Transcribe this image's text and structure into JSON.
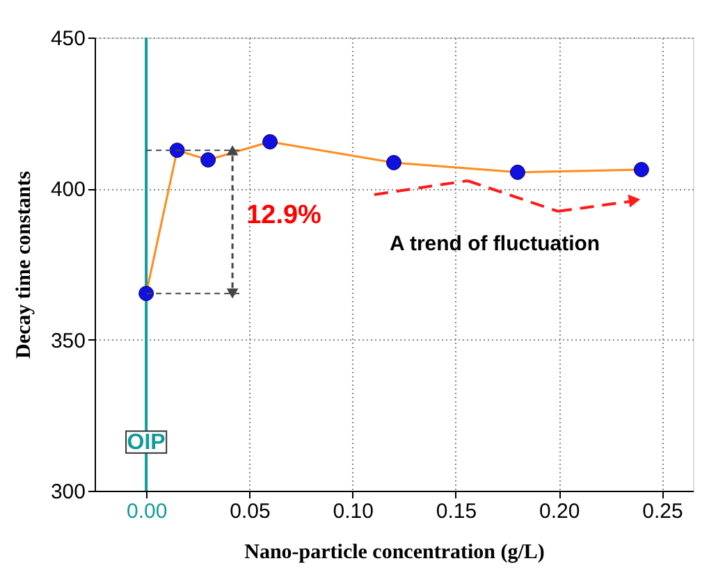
{
  "chart_data": {
    "type": "line",
    "xlabel": "Nano-particle concentration (g/L)",
    "ylabel": "Decay time constants",
    "x": [
      0.0,
      0.015,
      0.03,
      0.06,
      0.12,
      0.18,
      0.24
    ],
    "series": [
      {
        "color": "#ff8c1a",
        "colors": [
          "#1010e0",
          "#1010e0",
          "#1010e0",
          "#1010e0",
          "#1010e0",
          "#1010e0",
          "#1010e0"
        ],
        "values": [
          365.3,
          412.7,
          409.5,
          415.5,
          408.6,
          405.4,
          406.3
        ]
      }
    ],
    "marker": "circle",
    "xlim": [
      -0.025,
      0.265
    ],
    "xticks": [
      {
        "value": 0,
        "label": "0.00"
      },
      {
        "value": 0.05,
        "label": "0.05"
      },
      {
        "value": 0.1,
        "label": "0.10"
      },
      {
        "value": 0.15,
        "label": "0.15"
      },
      {
        "value": 0.2,
        "label": "0.20"
      },
      {
        "value": 0.25,
        "label": "0.25"
      }
    ],
    "ylim": [
      300,
      450
    ],
    "yticks": [
      300,
      350,
      400,
      450
    ],
    "grid": true,
    "ref_lines": [
      {
        "axis": "x",
        "value": 0,
        "label": "OIP",
        "color": "#129a9a"
      }
    ],
    "annotations": [
      "12.9%",
      "A trend of fluctuation"
    ]
  }
}
